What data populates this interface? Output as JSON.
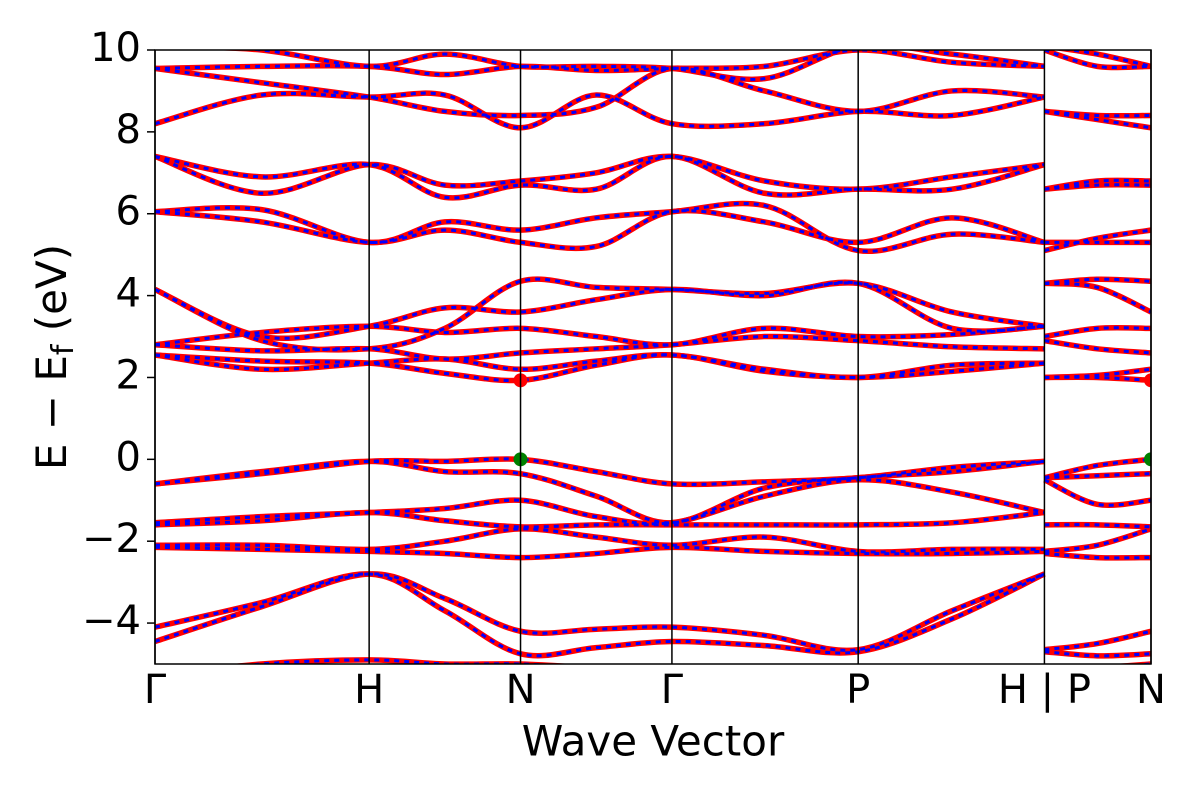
{
  "chart_data": {
    "type": "band",
    "xlabel": "Wave Vector",
    "ylabel": [
      "E − E",
      "f",
      " (eV)"
    ],
    "xlim": [
      0,
      1
    ],
    "ylim": [
      -5,
      10
    ],
    "xticks": [
      {
        "value": 0,
        "label": "Γ"
      },
      {
        "value": 0.215,
        "label": "H"
      },
      {
        "value": 0.367,
        "label": "N"
      },
      {
        "value": 0.519,
        "label": "Γ"
      },
      {
        "value": 0.706,
        "label": "P"
      },
      {
        "value": 0.893,
        "label": "H | P"
      },
      {
        "value": 1.0,
        "label": "N"
      }
    ],
    "yticks": [
      {
        "value": -4,
        "label": "−4"
      },
      {
        "value": -2,
        "label": "−2"
      },
      0,
      2,
      4,
      6,
      8,
      10
    ],
    "x": [
      0,
      0.107,
      0.215,
      0.291,
      0.367,
      0.443,
      0.519,
      0.612,
      0.706,
      0.8,
      0.893,
      0.893,
      0.893,
      0.946,
      1.0
    ],
    "series": [
      {
        "color": "#ff0000",
        "dashed": false,
        "bands": [
          [
            -5.3,
            -5.0,
            -4.9,
            -5.0,
            -5.0,
            -5.1,
            -5.2,
            -5.1,
            -5.2,
            -5.3,
            -5.4,
            null,
            -5.2,
            -5.1,
            -5.0
          ],
          [
            -4.45,
            -3.6,
            -2.8,
            -3.4,
            -4.2,
            -4.15,
            -4.1,
            -4.3,
            -4.65,
            -3.7,
            -2.8,
            null,
            -4.65,
            -4.5,
            -4.2
          ],
          [
            -4.1,
            -3.5,
            -2.8,
            -3.7,
            -4.75,
            -4.6,
            -4.45,
            -4.55,
            -4.7,
            -3.9,
            -2.8,
            null,
            -4.7,
            -4.8,
            -4.75
          ],
          [
            -2.15,
            -2.2,
            -2.25,
            -2.3,
            -2.4,
            -2.3,
            -2.15,
            -2.25,
            -2.3,
            -2.3,
            -2.25,
            null,
            -2.3,
            -2.4,
            -2.4
          ],
          [
            -2.1,
            -2.1,
            -2.2,
            -2.0,
            -1.7,
            -1.9,
            -2.1,
            -1.9,
            -2.25,
            -2.2,
            -2.2,
            null,
            -2.25,
            -2.1,
            -1.7
          ],
          [
            -1.6,
            -1.5,
            -1.3,
            -1.5,
            -1.65,
            -1.6,
            -1.6,
            -1.6,
            -1.6,
            -1.55,
            -1.3,
            null,
            -1.6,
            -1.6,
            -1.65
          ],
          [
            -1.55,
            -1.4,
            -1.3,
            -1.2,
            -1.0,
            -1.4,
            -1.55,
            -0.9,
            -0.5,
            -0.8,
            -1.3,
            null,
            -0.5,
            -1.1,
            -1.0
          ],
          [
            -0.6,
            -0.3,
            -0.05,
            -0.3,
            -0.35,
            -0.9,
            -1.55,
            -0.7,
            -0.45,
            -0.3,
            -0.05,
            null,
            -0.45,
            -0.4,
            -0.35
          ],
          [
            -0.6,
            -0.35,
            -0.05,
            -0.05,
            0,
            -0.3,
            -0.6,
            -0.55,
            -0.45,
            -0.2,
            -0.05,
            null,
            -0.45,
            -0.15,
            0
          ],
          [
            2.55,
            2.4,
            2.35,
            2.1,
            1.93,
            2.3,
            2.55,
            2.15,
            2.0,
            2.15,
            2.35,
            null,
            2.0,
            2.0,
            1.93
          ],
          [
            2.55,
            2.2,
            2.35,
            2.45,
            2.2,
            2.4,
            2.55,
            2.2,
            2.0,
            2.3,
            2.35,
            null,
            2.0,
            2.05,
            2.2
          ],
          [
            2.8,
            2.65,
            2.7,
            2.45,
            2.6,
            2.7,
            2.8,
            3.0,
            2.9,
            2.75,
            2.7,
            null,
            2.9,
            2.7,
            2.6
          ],
          [
            2.8,
            3.1,
            3.25,
            3.1,
            3.2,
            3.0,
            2.8,
            3.2,
            3.0,
            3.05,
            3.25,
            null,
            3.0,
            3.2,
            3.2
          ],
          [
            4.15,
            3.0,
            3.25,
            3.7,
            3.6,
            3.9,
            4.15,
            4.0,
            4.3,
            3.2,
            3.25,
            null,
            4.3,
            4.2,
            3.6
          ],
          [
            4.15,
            2.9,
            2.7,
            3.2,
            4.35,
            4.2,
            4.15,
            4.05,
            4.3,
            3.6,
            3.25,
            null,
            4.3,
            4.4,
            4.35
          ],
          [
            6.05,
            5.8,
            5.3,
            5.6,
            5.3,
            5.2,
            6.05,
            5.8,
            5.3,
            5.9,
            5.3,
            null,
            5.3,
            5.3,
            5.3
          ],
          [
            6.05,
            6.1,
            5.3,
            5.8,
            5.6,
            5.9,
            6.05,
            6.2,
            5.1,
            5.5,
            5.3,
            null,
            5.1,
            5.4,
            5.6
          ],
          [
            7.4,
            6.9,
            7.2,
            6.4,
            6.7,
            6.6,
            7.4,
            6.5,
            6.6,
            6.6,
            7.2,
            null,
            6.6,
            6.7,
            6.7
          ],
          [
            7.4,
            6.5,
            7.2,
            6.7,
            6.8,
            7.0,
            7.4,
            6.8,
            6.6,
            6.9,
            7.2,
            null,
            6.6,
            6.8,
            6.8
          ],
          [
            8.2,
            8.9,
            8.85,
            8.9,
            8.1,
            8.9,
            8.2,
            8.2,
            8.5,
            8.4,
            8.85,
            null,
            8.5,
            8.3,
            8.1
          ],
          [
            9.55,
            9.2,
            8.85,
            8.5,
            8.4,
            8.6,
            9.55,
            9.0,
            8.5,
            9.0,
            8.85,
            null,
            8.5,
            8.4,
            8.4
          ],
          [
            9.55,
            9.6,
            9.6,
            9.4,
            9.6,
            9.5,
            9.55,
            9.6,
            10,
            9.7,
            9.6,
            null,
            10,
            9.6,
            9.6
          ],
          [
            10.1,
            10,
            9.6,
            9.9,
            9.6,
            9.6,
            9.55,
            9.3,
            10.1,
            9.9,
            9.6,
            null,
            10.1,
            9.9,
            9.6
          ]
        ]
      },
      {
        "color": "#0000ff",
        "dashed": true,
        "bands": [
          [
            -5.3,
            -5.0,
            -4.9,
            -5.0,
            -5.0,
            -5.1,
            -5.2,
            -5.1,
            -5.2,
            -5.3,
            -5.4,
            null,
            -5.2,
            -5.1,
            -5.0
          ],
          [
            -4.45,
            -3.6,
            -2.8,
            -3.4,
            -4.2,
            -4.15,
            -4.1,
            -4.3,
            -4.65,
            -3.7,
            -2.8,
            null,
            -4.65,
            -4.5,
            -4.2
          ],
          [
            -4.1,
            -3.5,
            -2.8,
            -3.7,
            -4.75,
            -4.6,
            -4.45,
            -4.55,
            -4.7,
            -3.9,
            -2.8,
            null,
            -4.7,
            -4.8,
            -4.75
          ],
          [
            -2.15,
            -2.2,
            -2.25,
            -2.3,
            -2.4,
            -2.3,
            -2.15,
            -2.25,
            -2.3,
            -2.3,
            -2.25,
            null,
            -2.3,
            -2.4,
            -2.4
          ],
          [
            -2.1,
            -2.1,
            -2.2,
            -2.0,
            -1.7,
            -1.9,
            -2.1,
            -1.9,
            -2.25,
            -2.2,
            -2.2,
            null,
            -2.25,
            -2.1,
            -1.7
          ],
          [
            -1.6,
            -1.5,
            -1.3,
            -1.5,
            -1.65,
            -1.6,
            -1.6,
            -1.6,
            -1.6,
            -1.55,
            -1.3,
            null,
            -1.6,
            -1.6,
            -1.65
          ],
          [
            -1.55,
            -1.4,
            -1.3,
            -1.2,
            -1.0,
            -1.4,
            -1.55,
            -0.9,
            -0.5,
            -0.8,
            -1.3,
            null,
            -0.5,
            -1.1,
            -1.0
          ],
          [
            -0.6,
            -0.3,
            -0.05,
            -0.3,
            -0.35,
            -0.9,
            -1.55,
            -0.7,
            -0.45,
            -0.3,
            -0.05,
            null,
            -0.45,
            -0.4,
            -0.35
          ],
          [
            -0.6,
            -0.35,
            -0.05,
            -0.05,
            0,
            -0.3,
            -0.6,
            -0.55,
            -0.45,
            -0.2,
            -0.05,
            null,
            -0.45,
            -0.15,
            0
          ],
          [
            2.55,
            2.4,
            2.35,
            2.1,
            1.93,
            2.3,
            2.55,
            2.15,
            2.0,
            2.15,
            2.35,
            null,
            2.0,
            2.0,
            1.93
          ],
          [
            2.55,
            2.2,
            2.35,
            2.45,
            2.2,
            2.4,
            2.55,
            2.2,
            2.0,
            2.3,
            2.35,
            null,
            2.0,
            2.05,
            2.2
          ],
          [
            2.8,
            2.65,
            2.7,
            2.45,
            2.6,
            2.7,
            2.8,
            3.0,
            2.9,
            2.75,
            2.7,
            null,
            2.9,
            2.7,
            2.6
          ],
          [
            2.8,
            3.1,
            3.25,
            3.1,
            3.2,
            3.0,
            2.8,
            3.2,
            3.0,
            3.05,
            3.25,
            null,
            3.0,
            3.2,
            3.2
          ],
          [
            4.15,
            3.0,
            3.25,
            3.7,
            3.6,
            3.9,
            4.15,
            4.0,
            4.3,
            3.2,
            3.25,
            null,
            4.3,
            4.2,
            3.6
          ],
          [
            4.15,
            2.9,
            2.7,
            3.2,
            4.35,
            4.2,
            4.15,
            4.05,
            4.3,
            3.6,
            3.25,
            null,
            4.3,
            4.4,
            4.35
          ],
          [
            6.05,
            5.8,
            5.3,
            5.6,
            5.3,
            5.2,
            6.05,
            5.8,
            5.3,
            5.9,
            5.3,
            null,
            5.3,
            5.3,
            5.3
          ],
          [
            6.05,
            6.1,
            5.3,
            5.8,
            5.6,
            5.9,
            6.05,
            6.2,
            5.1,
            5.5,
            5.3,
            null,
            5.1,
            5.4,
            5.6
          ],
          [
            7.4,
            6.9,
            7.2,
            6.4,
            6.7,
            6.6,
            7.4,
            6.5,
            6.6,
            6.6,
            7.2,
            null,
            6.6,
            6.7,
            6.7
          ],
          [
            7.4,
            6.5,
            7.2,
            6.7,
            6.8,
            7.0,
            7.4,
            6.8,
            6.6,
            6.9,
            7.2,
            null,
            6.6,
            6.8,
            6.8
          ],
          [
            8.2,
            8.9,
            8.85,
            8.9,
            8.1,
            8.9,
            8.2,
            8.2,
            8.5,
            8.4,
            8.85,
            null,
            8.5,
            8.3,
            8.1
          ],
          [
            9.55,
            9.2,
            8.85,
            8.5,
            8.4,
            8.6,
            9.55,
            9.0,
            8.5,
            9.0,
            8.85,
            null,
            8.5,
            8.4,
            8.4
          ],
          [
            9.55,
            9.6,
            9.6,
            9.4,
            9.6,
            9.5,
            9.55,
            9.6,
            10,
            9.7,
            9.6,
            null,
            10,
            9.6,
            9.6
          ],
          [
            10.1,
            10,
            9.6,
            9.9,
            9.6,
            9.6,
            9.55,
            9.3,
            10.1,
            9.9,
            9.6,
            null,
            10.1,
            9.9,
            9.6
          ]
        ]
      }
    ],
    "markers": [
      {
        "x": 0.367,
        "y": 1.93,
        "color": "#ff0000"
      },
      {
        "x": 1.0,
        "y": 1.93,
        "color": "#ff0000"
      },
      {
        "x": 0.367,
        "y": 0,
        "color": "#008000"
      },
      {
        "x": 1.0,
        "y": 0,
        "color": "#008000"
      }
    ]
  }
}
